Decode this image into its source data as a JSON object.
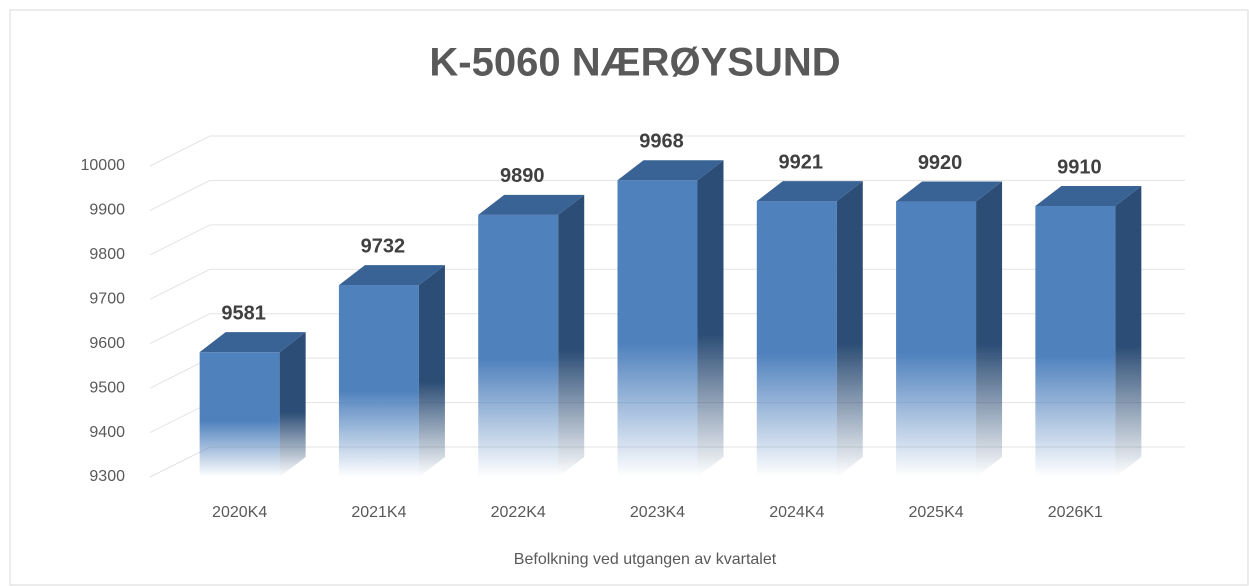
{
  "chart_data": {
    "type": "bar3d",
    "title": "K-5060 NÆRØYSUND",
    "x_label": "Befolkning ved utgangen av kvartalet",
    "categories": [
      "2020K4",
      "2021K4",
      "2022K4",
      "2023K4",
      "2024K4",
      "2025K4",
      "2026K1"
    ],
    "values": [
      9581,
      9732,
      9890,
      9968,
      9921,
      9920,
      9910
    ],
    "color": "#4f81bd",
    "ylim": [
      9300,
      10000
    ],
    "yticks": [
      9300,
      9400,
      9500,
      9600,
      9700,
      9800,
      9900,
      10000
    ],
    "grid": true
  }
}
